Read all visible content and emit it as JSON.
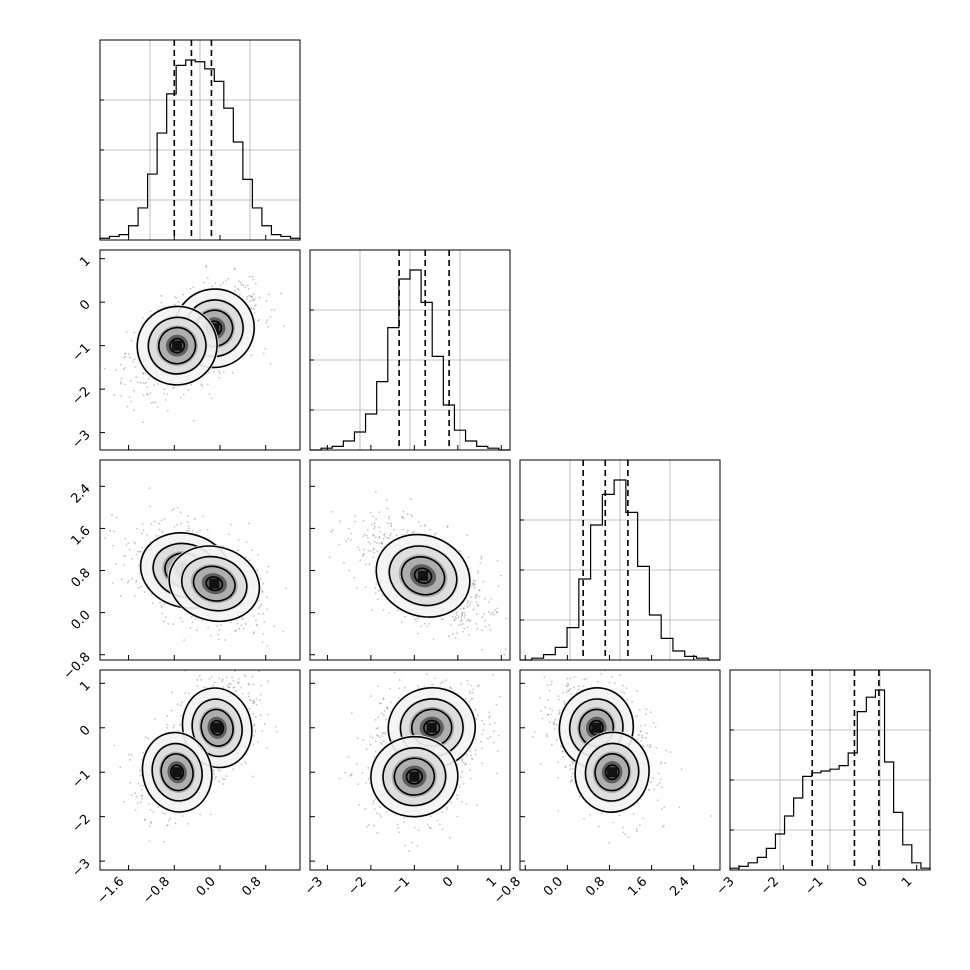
{
  "chart_data": {
    "type": "corner",
    "parameters": [
      {
        "ticks": [
          -1.6,
          -0.8,
          0.0,
          0.8
        ],
        "tick_labels": [
          "−1.6",
          "−0.8",
          "0.0",
          "0.8"
        ],
        "range": [
          -2.1,
          1.4
        ],
        "mean": -0.5,
        "sd": 0.45,
        "quantiles": [
          -0.8,
          -0.5,
          -0.15
        ]
      },
      {
        "ticks": [
          -3,
          -2,
          -1,
          0,
          1
        ],
        "tick_labels": [
          "−3",
          "−2",
          "−1",
          "0",
          "1"
        ],
        "range": [
          -3.4,
          1.2
        ],
        "mean": -0.8,
        "sd": 0.6,
        "quantiles": [
          -1.35,
          -0.75,
          -0.2
        ]
      },
      {
        "ticks": [
          -0.8,
          0.0,
          0.8,
          1.6,
          2.4
        ],
        "tick_labels": [
          "−0.8",
          "0.0",
          "0.8",
          "1.6",
          "2.4"
        ],
        "range": [
          -0.9,
          2.9
        ],
        "mean": 0.75,
        "sd": 0.4,
        "quantiles": [
          0.3,
          0.72,
          1.15
        ]
      },
      {
        "ticks": [
          -3,
          -2,
          -1,
          0,
          1
        ],
        "tick_labels": [
          "−3",
          "−2",
          "−1",
          "0",
          "1"
        ],
        "range": [
          -3.2,
          1.3
        ],
        "mean": -0.4,
        "sd": 0.6,
        "quantiles": [
          -1.35,
          -0.4,
          0.15
        ]
      }
    ],
    "histograms": [
      {
        "param": 0,
        "counts": [
          1,
          2,
          3,
          8,
          18,
          37,
          60,
          82,
          98,
          101,
          100,
          96,
          89,
          74,
          55,
          34,
          18,
          8,
          3,
          2,
          1
        ]
      },
      {
        "param": 1,
        "counts": [
          0,
          1,
          2,
          5,
          10,
          20,
          38,
          68,
          95,
          100,
          82,
          52,
          25,
          11,
          5,
          2,
          1,
          0
        ]
      },
      {
        "param": 2,
        "counts": [
          0,
          1,
          3,
          7,
          18,
          45,
          75,
          92,
          100,
          82,
          52,
          25,
          12,
          5,
          2,
          1,
          0
        ]
      },
      {
        "param": 3,
        "counts": [
          1,
          2,
          4,
          7,
          12,
          20,
          30,
          40,
          52,
          54,
          55,
          56,
          58,
          65,
          88,
          96,
          100,
          60,
          32,
          14,
          4,
          1
        ]
      }
    ],
    "joint": [
      {
        "x": 0,
        "y": 1,
        "modes": [
          {
            "cx": -0.1,
            "cy": -0.6,
            "w": 0.55
          },
          {
            "cx": -0.75,
            "cy": -1.0,
            "w": 0.45
          }
        ],
        "sx": 0.35,
        "sy": 0.45,
        "rho": 0.4
      },
      {
        "x": 0,
        "y": 2,
        "modes": [
          {
            "cx": -0.6,
            "cy": 0.8,
            "w": 0.55
          },
          {
            "cx": -0.1,
            "cy": 0.55,
            "w": 0.45
          }
        ],
        "sx": 0.4,
        "sy": 0.35,
        "rho": -0.35
      },
      {
        "x": 1,
        "y": 2,
        "modes": [
          {
            "cx": -0.8,
            "cy": 0.7,
            "w": 1.0
          }
        ],
        "sx": 0.55,
        "sy": 0.38,
        "rho": -0.5
      },
      {
        "x": 0,
        "y": 3,
        "modes": [
          {
            "cx": -0.05,
            "cy": 0.0,
            "w": 0.55
          },
          {
            "cx": -0.75,
            "cy": -1.0,
            "w": 0.45
          }
        ],
        "sx": 0.3,
        "sy": 0.45,
        "rho": 0.3
      },
      {
        "x": 1,
        "y": 3,
        "modes": [
          {
            "cx": -0.6,
            "cy": 0.0,
            "w": 0.55
          },
          {
            "cx": -1.0,
            "cy": -1.1,
            "w": 0.45
          }
        ],
        "sx": 0.5,
        "sy": 0.45,
        "rho": 0.1
      },
      {
        "x": 2,
        "y": 3,
        "modes": [
          {
            "cx": 0.55,
            "cy": 0.0,
            "w": 0.55
          },
          {
            "cx": 0.85,
            "cy": -1.0,
            "w": 0.45
          }
        ],
        "sx": 0.35,
        "sy": 0.45,
        "rho": -0.2
      }
    ],
    "grid": true
  }
}
